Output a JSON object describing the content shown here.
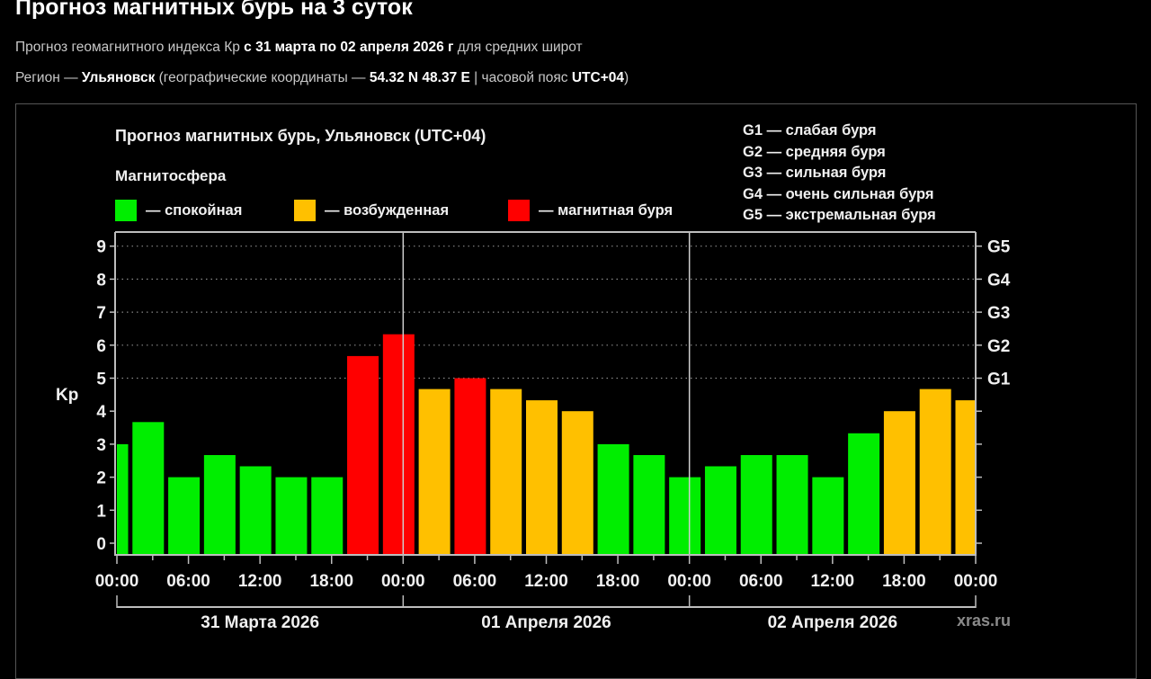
{
  "page": {
    "title": "Прогноз магнитных бурь на 3 суток",
    "subtitle1": {
      "pre": "Прогноз геомагнитного индекса Кр ",
      "bold": "с 31 марта по 02 апреля 2026 г",
      "post": " для средних широт"
    },
    "subtitle2": {
      "p1": "Регион — ",
      "city": "Ульяновск",
      "p2": " (географические координаты — ",
      "coords": "54.32 N 48.37 E",
      "p3": " | часовой пояс ",
      "tz": "UTC+04",
      "p4": ")"
    }
  },
  "chart": {
    "title": "Прогноз магнитных бурь, Ульяновск (UTC+04)",
    "legend_heading": "Магнитосфера",
    "legend": [
      {
        "label": "— спокойная",
        "color": "#00ee00"
      },
      {
        "label": "— возбужденная",
        "color": "#ffc000"
      },
      {
        "label": "— магнитная буря",
        "color": "#ff0000"
      }
    ],
    "g_legend": [
      "G1 — слабая буря",
      "G2 — средняя буря",
      "G3 — сильная буря",
      "G4 — очень сильная буря",
      "G5 — экстремальная буря"
    ],
    "watermark": "xras.ru"
  },
  "chart_data": {
    "type": "bar",
    "title": "Прогноз магнитных бурь, Ульяновск (UTC+04)",
    "ylabel": "Kp",
    "xlabel": "",
    "ylim": [
      0,
      9
    ],
    "yticks": [
      0,
      1,
      2,
      3,
      4,
      5,
      6,
      7,
      8,
      9
    ],
    "right_ticks": [
      {
        "y": 5,
        "label": "G1"
      },
      {
        "y": 6,
        "label": "G2"
      },
      {
        "y": 7,
        "label": "G3"
      },
      {
        "y": 8,
        "label": "G4"
      },
      {
        "y": 9,
        "label": "G5"
      }
    ],
    "grid": "dotted horizontal at 5-9",
    "xtick_labels": [
      "00:00",
      "06:00",
      "12:00",
      "18:00",
      "00:00",
      "06:00",
      "12:00",
      "18:00",
      "00:00",
      "06:00",
      "12:00",
      "18:00",
      "00:00"
    ],
    "days": [
      "31 Марта 2026",
      "01 Апреля 2026",
      "02 Апреля 2026"
    ],
    "interval_hours": 3,
    "values": [
      3.0,
      3.67,
      2.0,
      2.67,
      2.33,
      2.0,
      2.0,
      5.67,
      6.33,
      4.67,
      5.0,
      4.67,
      4.33,
      4.0,
      3.0,
      2.67,
      2.0,
      2.33,
      2.67,
      2.67,
      2.0,
      3.33,
      4.0,
      4.67,
      4.33
    ],
    "categories": [
      "quiet",
      "quiet",
      "quiet",
      "quiet",
      "quiet",
      "quiet",
      "quiet",
      "storm",
      "storm",
      "active",
      "storm",
      "active",
      "active",
      "active",
      "quiet",
      "quiet",
      "quiet",
      "quiet",
      "quiet",
      "quiet",
      "quiet",
      "quiet",
      "active",
      "active",
      "active"
    ],
    "colors": {
      "quiet": "#00ee00",
      "active": "#ffc000",
      "storm": "#ff0000"
    }
  }
}
